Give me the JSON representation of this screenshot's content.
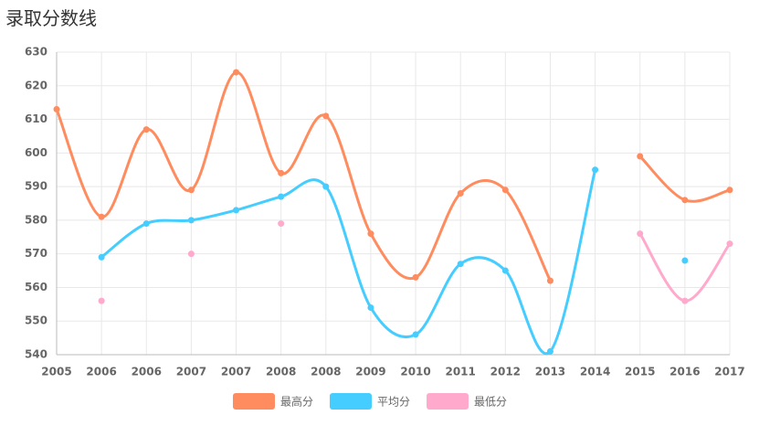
{
  "chart_data": {
    "type": "line",
    "title": "录取分数线",
    "categories": [
      "2005",
      "2006",
      "2006",
      "2007",
      "2007",
      "2008",
      "2008",
      "2009",
      "2010",
      "2011",
      "2012",
      "2013",
      "2014",
      "2015",
      "2016",
      "2017"
    ],
    "series": [
      {
        "name": "最高分",
        "color": "#ff8c5f",
        "values": [
          613,
          581,
          607,
          589,
          624,
          594,
          611,
          576,
          563,
          588,
          589,
          562,
          null,
          599,
          586,
          589
        ]
      },
      {
        "name": "平均分",
        "color": "#45cdff",
        "values": [
          null,
          569,
          579,
          580,
          583,
          587,
          590,
          554,
          546,
          567,
          565,
          541,
          595,
          null,
          568,
          null
        ]
      },
      {
        "name": "最低分",
        "color": "#ffa9cc",
        "values": [
          null,
          556,
          null,
          570,
          null,
          579,
          null,
          null,
          null,
          null,
          null,
          null,
          null,
          576,
          556,
          573
        ]
      }
    ],
    "ylim": [
      540,
      630
    ],
    "yticks": [
      540,
      550,
      560,
      570,
      580,
      590,
      600,
      610,
      620,
      630
    ],
    "grid": true,
    "smooth": true,
    "legend": "bottom"
  }
}
